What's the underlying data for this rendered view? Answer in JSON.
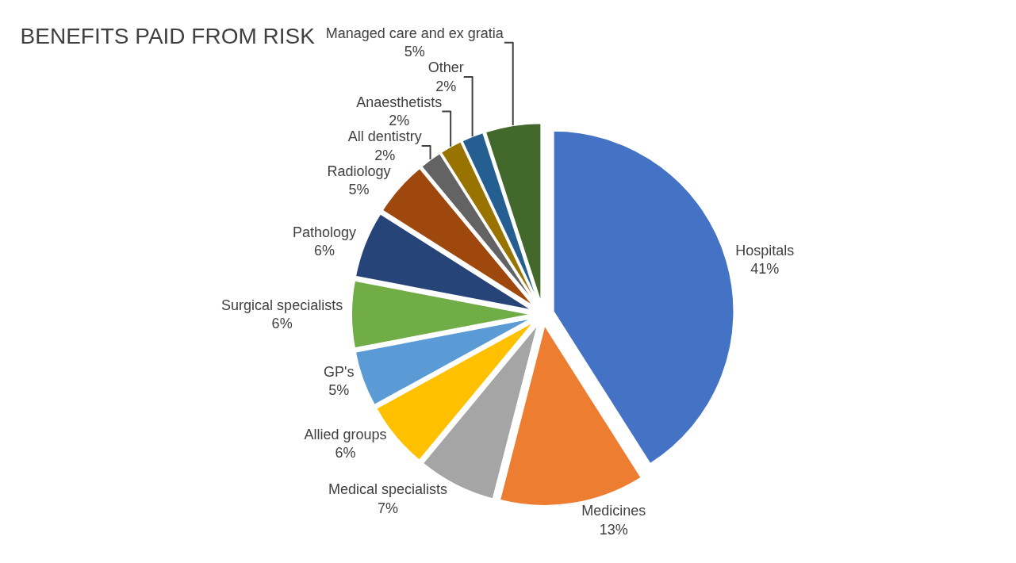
{
  "chart_data": {
    "type": "pie",
    "title": "BENEFITS PAID FROM RISK",
    "categories": [
      "Hospitals",
      "Medicines",
      "Medical specialists",
      "Allied groups",
      "GP's",
      "Surgical specialists",
      "Pathology",
      "Radiology",
      "All dentistry",
      "Anaesthetists",
      "Other",
      "Managed care and ex gratia"
    ],
    "values": [
      41,
      13,
      7,
      6,
      5,
      6,
      6,
      5,
      2,
      2,
      2,
      5
    ],
    "value_labels": [
      "41%",
      "13%",
      "7%",
      "6%",
      "5%",
      "6%",
      "6%",
      "5%",
      "2%",
      "2%",
      "2%",
      "5%"
    ],
    "colors": [
      "#4472c4",
      "#ed7d31",
      "#a5a5a5",
      "#ffc000",
      "#5b9bd5",
      "#70ad47",
      "#264478",
      "#9e480e",
      "#636363",
      "#997300",
      "#255e91",
      "#43682b"
    ],
    "legend": false
  }
}
